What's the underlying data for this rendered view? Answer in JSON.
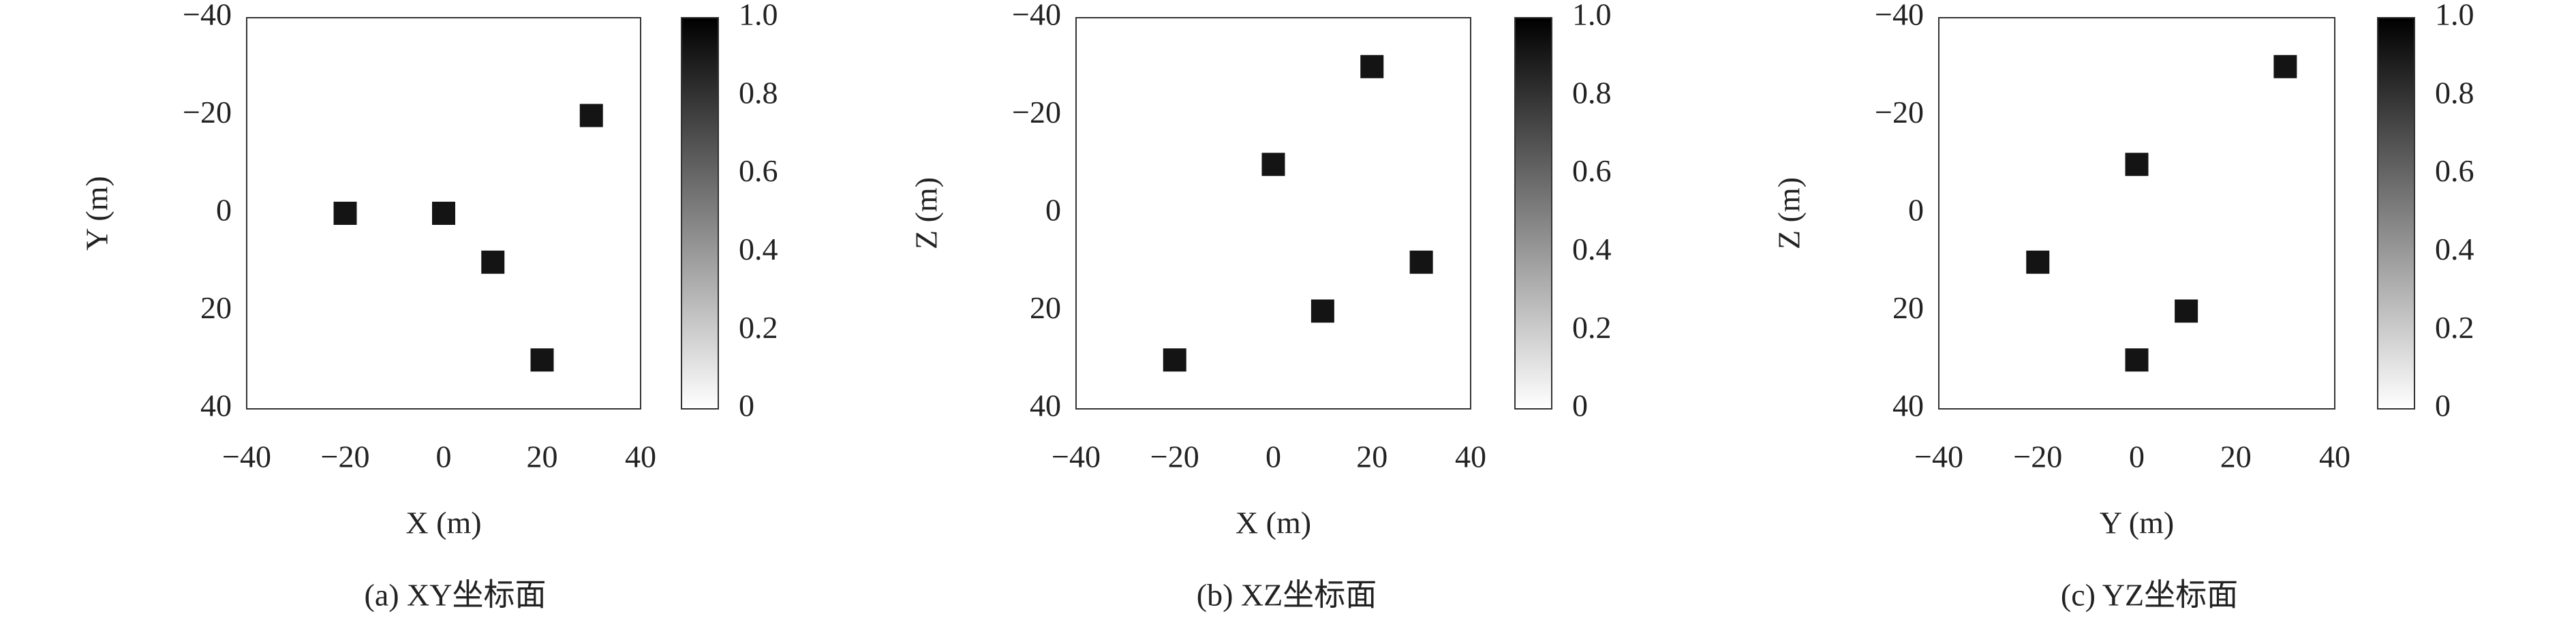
{
  "chart_data": [
    {
      "type": "scatter",
      "caption": "(a) XY坐标面",
      "xlabel": "X (m)",
      "ylabel": "Y (m)",
      "x": [
        -20,
        0,
        10,
        20,
        30
      ],
      "y": [
        0,
        0,
        10,
        30,
        -20
      ],
      "color": "#141414",
      "xlim": [
        -40,
        40
      ],
      "ylim": [
        -40,
        40
      ],
      "y_inverted": true,
      "xticks": [
        {
          "value": -40,
          "label": "−40"
        },
        {
          "value": -20,
          "label": "−20"
        },
        0,
        20,
        40
      ],
      "yticks": [
        {
          "value": -40,
          "label": "−40"
        },
        {
          "value": -20,
          "label": "−20"
        },
        0,
        20,
        40
      ],
      "colorbar": {
        "lim": [
          0,
          1
        ],
        "colors": [
          "#ffffff",
          "#000000"
        ],
        "ticks": [
          0,
          0.2,
          0.4,
          0.6,
          0.8,
          {
            "value": 1,
            "label": "1.0"
          }
        ]
      }
    },
    {
      "type": "scatter",
      "caption": "(b) XZ坐标面",
      "xlabel": "X (m)",
      "ylabel": "Z (m)",
      "x": [
        -20,
        0,
        10,
        20,
        30
      ],
      "y": [
        30,
        -10,
        20,
        -30,
        10
      ],
      "color": "#141414",
      "xlim": [
        -40,
        40
      ],
      "ylim": [
        -40,
        40
      ],
      "y_inverted": true,
      "xticks": [
        {
          "value": -40,
          "label": "−40"
        },
        {
          "value": -20,
          "label": "−20"
        },
        0,
        20,
        40
      ],
      "yticks": [
        {
          "value": -40,
          "label": "−40"
        },
        {
          "value": -20,
          "label": "−20"
        },
        0,
        20,
        40
      ],
      "colorbar": {
        "lim": [
          0,
          1
        ],
        "colors": [
          "#ffffff",
          "#000000"
        ],
        "ticks": [
          0,
          0.2,
          0.4,
          0.6,
          0.8,
          {
            "value": 1,
            "label": "1.0"
          }
        ]
      }
    },
    {
      "type": "scatter",
      "caption": "(c) YZ坐标面",
      "xlabel": "Y (m)",
      "ylabel": "Z (m)",
      "x": [
        -20,
        0,
        0,
        10,
        30
      ],
      "y": [
        10,
        -10,
        30,
        20,
        -30
      ],
      "color": "#141414",
      "xlim": [
        -40,
        40
      ],
      "ylim": [
        -40,
        40
      ],
      "y_inverted": true,
      "xticks": [
        {
          "value": -40,
          "label": "−40"
        },
        {
          "value": -20,
          "label": "−20"
        },
        0,
        20,
        40
      ],
      "yticks": [
        {
          "value": -40,
          "label": "−40"
        },
        {
          "value": -20,
          "label": "−20"
        },
        0,
        20,
        40
      ],
      "colorbar": {
        "lim": [
          0,
          1
        ],
        "colors": [
          "#ffffff",
          "#000000"
        ],
        "ticks": [
          0,
          0.2,
          0.4,
          0.6,
          0.8,
          {
            "value": 1,
            "label": "1.0"
          }
        ]
      }
    }
  ]
}
